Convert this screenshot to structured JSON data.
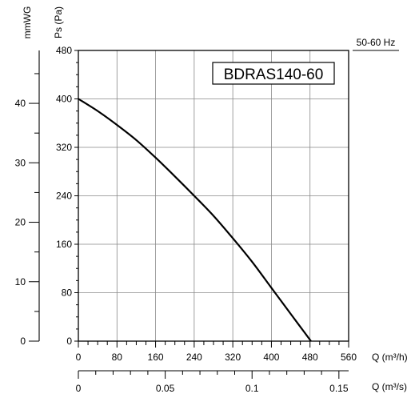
{
  "chart_data": {
    "type": "line",
    "model_label": "BDRAS140-60",
    "frequency_label": "50-60 Hz",
    "y_left_label": "mmWG",
    "y_right_label": "Ps (Pa)",
    "x_label": "Q (m³/h)",
    "x2_label": "Q (m³/s)",
    "x_ticks": [
      "0",
      "80",
      "160",
      "240",
      "320",
      "400",
      "480",
      "560"
    ],
    "x2_ticks": [
      "0",
      "0.05",
      "0.1",
      "0.15"
    ],
    "y_pa_ticks": [
      "0",
      "80",
      "160",
      "240",
      "320",
      "400",
      "480"
    ],
    "y_mmwg_ticks": [
      "0",
      "10",
      "20",
      "30",
      "40"
    ],
    "xlim": [
      0,
      560
    ],
    "ylim": [
      0,
      480
    ],
    "x2lim": [
      0,
      0.1556
    ],
    "mmwg_lim": [
      0,
      48.9
    ],
    "grid": true,
    "series": [
      {
        "x": [
          0,
          40,
          80,
          120,
          160,
          200,
          240,
          280,
          320,
          360,
          400,
          440,
          482
        ],
        "y": [
          400,
          380,
          357,
          332,
          303,
          272,
          240,
          207,
          170,
          131,
          88,
          45,
          0
        ]
      }
    ]
  }
}
